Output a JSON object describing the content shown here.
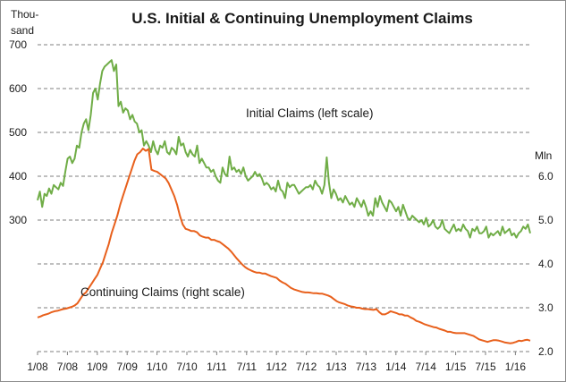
{
  "chart_data": {
    "type": "line",
    "title": "U.S. Initial & Continuing Unemployment Claims",
    "left_axis": {
      "unit_label": [
        "Thou-",
        "sand"
      ],
      "ticks": [
        300,
        400,
        500,
        600,
        700
      ],
      "tick_labels": [
        "300",
        "400",
        "500",
        "600",
        "700"
      ],
      "range": [
        0,
        700
      ]
    },
    "right_axis": {
      "unit_label": "Mln",
      "ticks": [
        2.0,
        3.0,
        4.0,
        5.0,
        6.0
      ],
      "tick_labels": [
        "2.0",
        "3.0",
        "4.0",
        "5.0",
        "6.0"
      ],
      "range": [
        2.0,
        9.0
      ]
    },
    "x_axis": {
      "start": "2008-01",
      "end": "2016-02",
      "tick_labels": [
        "1/08",
        "7/08",
        "1/09",
        "7/09",
        "1/10",
        "7/10",
        "1/11",
        "7/11",
        "1/12",
        "7/12",
        "1/13",
        "7/13",
        "1/14",
        "7/14",
        "1/15",
        "7/15",
        "1/16"
      ]
    },
    "grid": true,
    "annotations": [
      {
        "text": "Initial Claims (left scale)",
        "series": "initial"
      },
      {
        "text": "Continuing Claims (right scale)",
        "series": "continuing"
      }
    ],
    "series": [
      {
        "id": "initial",
        "name": "Initial Claims",
        "axis": "left",
        "color": "#70ad47",
        "x_step": "half-month",
        "values": [
          345,
          365,
          330,
          360,
          355,
          372,
          360,
          380,
          375,
          370,
          385,
          378,
          410,
          440,
          445,
          430,
          440,
          470,
          465,
          500,
          520,
          530,
          505,
          540,
          590,
          600,
          575,
          610,
          640,
          650,
          655,
          660,
          665,
          640,
          655,
          560,
          570,
          545,
          555,
          550,
          530,
          540,
          525,
          520,
          500,
          505,
          470,
          480,
          470,
          455,
          480,
          460,
          450,
          470,
          465,
          480,
          455,
          450,
          465,
          460,
          450,
          490,
          470,
          475,
          455,
          445,
          460,
          450,
          445,
          470,
          430,
          440,
          430,
          420,
          420,
          410,
          415,
          400,
          390,
          385,
          420,
          405,
          400,
          445,
          415,
          420,
          410,
          415,
          405,
          420,
          400,
          390,
          395,
          400,
          410,
          400,
          405,
          395,
          380,
          385,
          380,
          370,
          375,
          365,
          390,
          370,
          365,
          350,
          385,
          375,
          380,
          380,
          370,
          360,
          365,
          370,
          375,
          375,
          380,
          370,
          390,
          380,
          375,
          360,
          380,
          443,
          385,
          350,
          370,
          360,
          345,
          350,
          340,
          355,
          345,
          335,
          340,
          330,
          350,
          340,
          330,
          345,
          330,
          310,
          320,
          310,
          350,
          330,
          355,
          340,
          330,
          320,
          345,
          340,
          330,
          320,
          330,
          310,
          335,
          320,
          305,
          300,
          310,
          305,
          300,
          295,
          300,
          290,
          305,
          285,
          290,
          300,
          285,
          280,
          285,
          300,
          280,
          275,
          270,
          280,
          290,
          275,
          280,
          275,
          290,
          280,
          275,
          260,
          280,
          275,
          285,
          270,
          270,
          275,
          285,
          260,
          270,
          265,
          270,
          275,
          265,
          285,
          270,
          275,
          280,
          265,
          270,
          260,
          270,
          275,
          285,
          280,
          290,
          270
        ],
        "notes": "weekly series approximated at half-month resolution; peak ~665k in Mar-Apr 2009; spike ~443k Nov 2012"
      },
      {
        "id": "continuing",
        "name": "Continuing Claims",
        "axis": "right",
        "color": "#e8601c",
        "x_step": "half-month",
        "values": [
          2.78,
          2.8,
          2.83,
          2.85,
          2.87,
          2.9,
          2.92,
          2.93,
          2.95,
          2.97,
          2.98,
          3.0,
          3.02,
          3.05,
          3.1,
          3.2,
          3.3,
          3.35,
          3.45,
          3.55,
          3.65,
          3.75,
          3.9,
          4.05,
          4.25,
          4.45,
          4.7,
          4.9,
          5.1,
          5.35,
          5.55,
          5.75,
          5.95,
          6.15,
          6.35,
          6.5,
          6.55,
          6.63,
          6.58,
          6.62,
          6.15,
          6.12,
          6.1,
          6.05,
          6.0,
          5.95,
          5.85,
          5.7,
          5.55,
          5.35,
          5.1,
          4.9,
          4.8,
          4.78,
          4.75,
          4.75,
          4.72,
          4.65,
          4.62,
          4.6,
          4.6,
          4.55,
          4.55,
          4.52,
          4.5,
          4.45,
          4.4,
          4.35,
          4.28,
          4.2,
          4.12,
          4.05,
          3.98,
          3.92,
          3.88,
          3.85,
          3.82,
          3.8,
          3.8,
          3.78,
          3.78,
          3.75,
          3.72,
          3.7,
          3.68,
          3.62,
          3.58,
          3.55,
          3.5,
          3.45,
          3.42,
          3.4,
          3.38,
          3.36,
          3.35,
          3.35,
          3.34,
          3.33,
          3.33,
          3.32,
          3.32,
          3.3,
          3.28,
          3.25,
          3.2,
          3.15,
          3.12,
          3.1,
          3.08,
          3.05,
          3.03,
          3.02,
          3.0,
          3.0,
          2.98,
          2.97,
          2.97,
          2.96,
          2.95,
          2.97,
          2.9,
          2.85,
          2.85,
          2.88,
          2.92,
          2.9,
          2.88,
          2.85,
          2.85,
          2.82,
          2.82,
          2.78,
          2.75,
          2.7,
          2.68,
          2.65,
          2.62,
          2.6,
          2.58,
          2.56,
          2.55,
          2.52,
          2.5,
          2.48,
          2.45,
          2.45,
          2.43,
          2.42,
          2.42,
          2.42,
          2.42,
          2.4,
          2.38,
          2.36,
          2.32,
          2.28,
          2.26,
          2.24,
          2.22,
          2.24,
          2.26,
          2.26,
          2.25,
          2.23,
          2.21,
          2.2,
          2.19,
          2.2,
          2.22,
          2.25,
          2.24,
          2.26,
          2.27,
          2.25
        ],
        "notes": "peak ~6.6 mln mid-2009"
      }
    ]
  }
}
